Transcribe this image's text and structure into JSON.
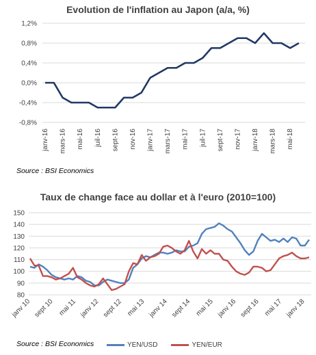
{
  "chart_data": [
    {
      "type": "line",
      "title": "Evolution de l'inflation au Japon (a/a, %)",
      "source": "Source : BSI Economics",
      "ylim": [
        -0.8,
        1.2
      ],
      "y_ticks": [
        "1,2%",
        "0,8%",
        "0,4%",
        "0,0%",
        "-0,4%",
        "-0,8%"
      ],
      "y_tick_values": [
        1.2,
        0.8,
        0.4,
        0.0,
        -0.4,
        -0.8
      ],
      "x_labels": [
        "janv-16",
        "mars-16",
        "mai-16",
        "juil-16",
        "sept-16",
        "nov-16",
        "janv-17",
        "mars-17",
        "mai-17",
        "juil-17",
        "sept-17",
        "nov-17",
        "janv-18",
        "mars-18",
        "mai-18"
      ],
      "grid": true,
      "series": [
        {
          "color": "#203864",
          "x": [
            "2016-01",
            "2016-02",
            "2016-03",
            "2016-04",
            "2016-05",
            "2016-06",
            "2016-07",
            "2016-08",
            "2016-09",
            "2016-10",
            "2016-11",
            "2016-12",
            "2017-01",
            "2017-02",
            "2017-03",
            "2017-04",
            "2017-05",
            "2017-06",
            "2017-07",
            "2017-08",
            "2017-09",
            "2017-10",
            "2017-11",
            "2017-12",
            "2018-01",
            "2018-02",
            "2018-03",
            "2018-04",
            "2018-05",
            "2018-06"
          ],
          "values": [
            0.0,
            0.0,
            -0.3,
            -0.4,
            -0.4,
            -0.4,
            -0.5,
            -0.5,
            -0.5,
            -0.3,
            -0.3,
            -0.2,
            0.1,
            0.2,
            0.3,
            0.3,
            0.4,
            0.4,
            0.5,
            0.7,
            0.7,
            0.8,
            0.9,
            0.9,
            0.8,
            1.0,
            0.8,
            0.8,
            0.7,
            0.8
          ]
        }
      ]
    },
    {
      "type": "line",
      "title": "Taux de change face au dollar et à l'euro (2010=100)",
      "source": "Source : BSI Economics",
      "ylim": [
        80,
        150
      ],
      "y_ticks": [
        "150",
        "140",
        "130",
        "120",
        "110",
        "100",
        "90",
        "80"
      ],
      "y_tick_values": [
        150,
        140,
        130,
        120,
        110,
        100,
        90,
        80
      ],
      "x_labels": [
        "janv 10",
        "sept 10",
        "mai 11",
        "janv 12",
        "sept 12",
        "mai 13",
        "janv 14",
        "sept 14",
        "mai 15",
        "janv 16",
        "sept 16",
        "mai 17",
        "janv 18"
      ],
      "legend_position": "bottom",
      "grid": true,
      "series": [
        {
          "name": "YEN/USD",
          "color": "#4F81BD",
          "values": [
            104,
            103,
            106,
            104,
            101,
            97,
            95,
            94,
            93,
            94,
            93,
            96,
            95,
            92,
            91,
            88,
            88,
            91,
            93,
            92,
            91,
            90,
            90,
            93,
            103,
            106,
            111,
            113,
            112,
            114,
            116,
            116,
            115,
            116,
            118,
            117,
            117,
            121,
            122,
            124,
            132,
            136,
            137,
            138,
            141,
            139,
            136,
            134,
            129,
            124,
            118,
            114,
            117,
            126,
            132,
            129,
            126,
            127,
            125,
            128,
            125,
            129,
            128,
            122,
            122,
            127
          ]
        },
        {
          "name": "YEN/EUR",
          "color": "#C0504D",
          "values": [
            111,
            105,
            105,
            96,
            96,
            95,
            93,
            94,
            96,
            98,
            103,
            95,
            93,
            90,
            88,
            87,
            89,
            94,
            89,
            84,
            85,
            87,
            89,
            100,
            107,
            106,
            114,
            109,
            112,
            113,
            115,
            121,
            122,
            120,
            117,
            115,
            118,
            126,
            117,
            111,
            119,
            115,
            118,
            115,
            115,
            110,
            109,
            104,
            100,
            98,
            97,
            99,
            104,
            104,
            103,
            100,
            101,
            106,
            111,
            113,
            114,
            116,
            113,
            111,
            111,
            112
          ]
        }
      ]
    }
  ]
}
